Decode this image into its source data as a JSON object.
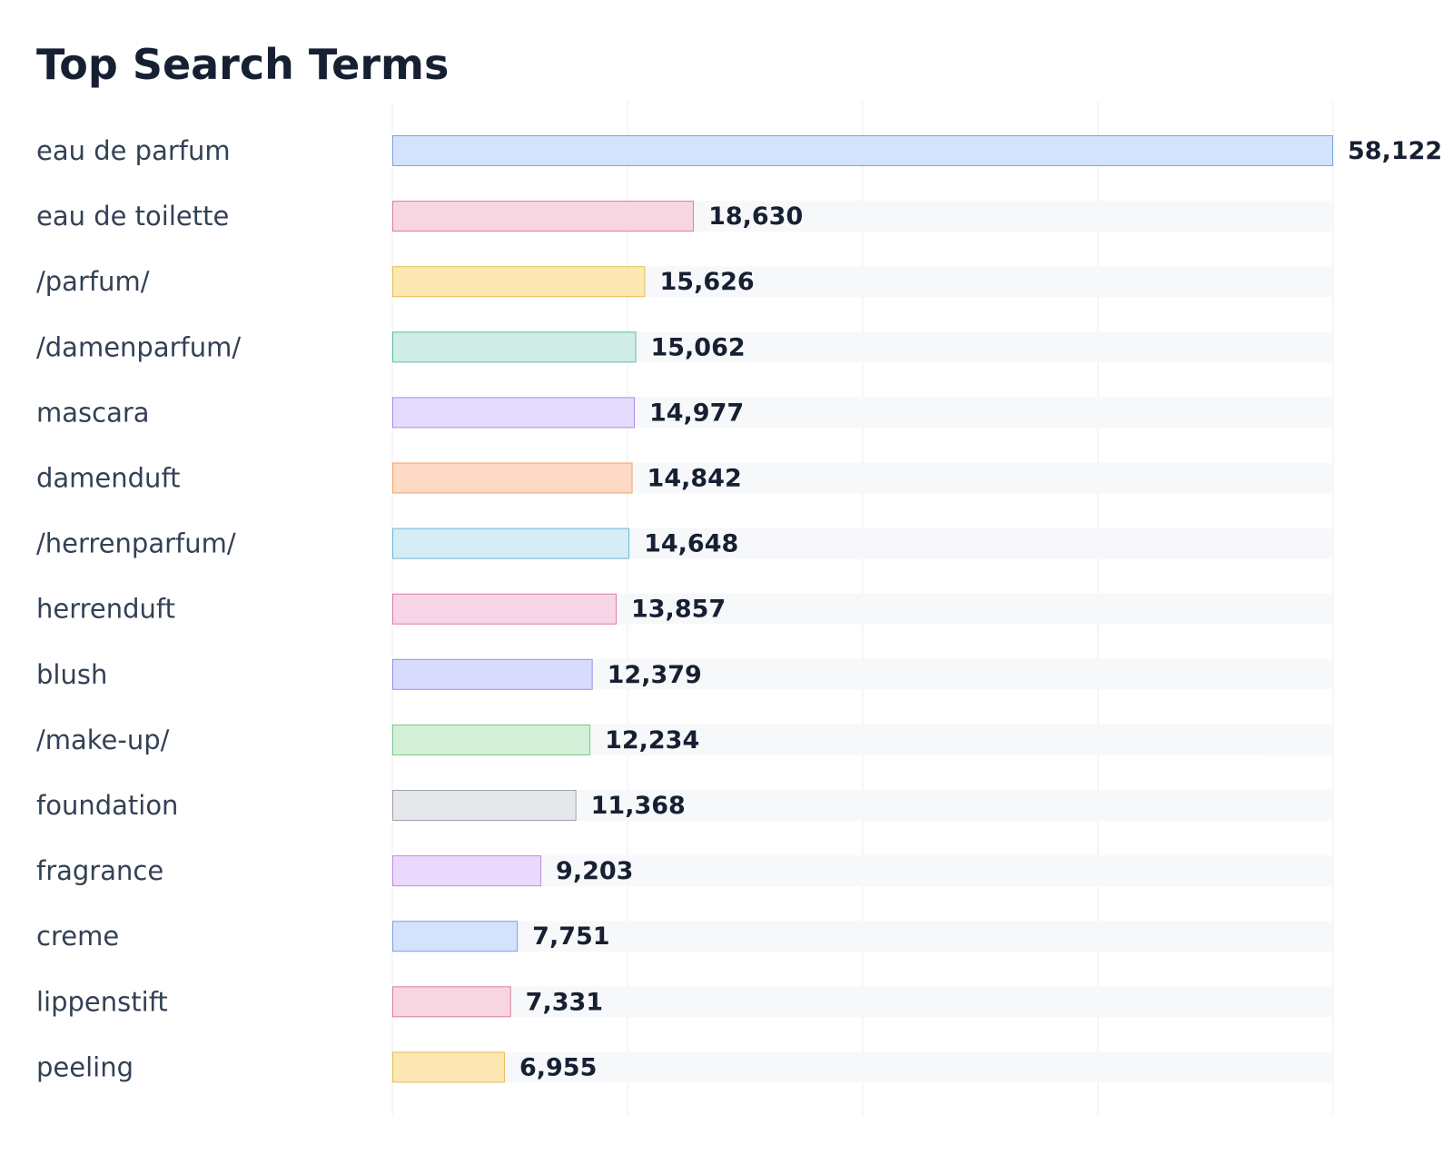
{
  "chart_data": {
    "type": "bar",
    "orientation": "horizontal",
    "title": "Top Search Terms",
    "xlabel": "",
    "ylabel": "",
    "xlim": [
      0,
      58122
    ],
    "grid": true,
    "legend": "none",
    "categories": [
      "eau de parfum",
      "eau de toilette",
      "/parfum/",
      "/damenparfum/",
      "mascara",
      "damenduft",
      "/herrenparfum/",
      "herrenduft",
      "blush",
      "/make-up/",
      "foundation",
      "fragrance",
      "creme",
      "lippenstift",
      "peeling"
    ],
    "values": [
      58122,
      18630,
      15626,
      15062,
      14977,
      14842,
      14648,
      13857,
      12379,
      12234,
      11368,
      9203,
      7751,
      7331,
      6955
    ],
    "value_labels": [
      "58,122",
      "18,630",
      "15,626",
      "15,062",
      "14,977",
      "14,842",
      "14,648",
      "13,857",
      "12,379",
      "12,234",
      "11,368",
      "9,203",
      "7,751",
      "7,331",
      "6,955"
    ],
    "bar_colors": [
      {
        "fill": "#d3e2fd",
        "stroke": "#7ba3e6"
      },
      {
        "fill": "#f8d6e1",
        "stroke": "#e07c9c"
      },
      {
        "fill": "#fde7b3",
        "stroke": "#e8bd54"
      },
      {
        "fill": "#d0ede7",
        "stroke": "#5bbfa1"
      },
      {
        "fill": "#e5dbfe",
        "stroke": "#a58cec"
      },
      {
        "fill": "#fed9c4",
        "stroke": "#f0a46a"
      },
      {
        "fill": "#d6ecf7",
        "stroke": "#6ab9d8"
      },
      {
        "fill": "#f6d5e6",
        "stroke": "#df7ba9"
      },
      {
        "fill": "#d9dbfe",
        "stroke": "#8e93ee"
      },
      {
        "fill": "#d5f0d8",
        "stroke": "#76c988"
      },
      {
        "fill": "#e5e7eb",
        "stroke": "#9ca3af"
      },
      {
        "fill": "#ebd8fd",
        "stroke": "#c28ae9"
      },
      {
        "fill": "#d3e2fd",
        "stroke": "#7ba3e6"
      },
      {
        "fill": "#f8d6e1",
        "stroke": "#e07c9c"
      },
      {
        "fill": "#fde7b3",
        "stroke": "#e8bd54"
      }
    ],
    "track_color": "#f7f8fa",
    "grid_color": "#ebedf0"
  }
}
